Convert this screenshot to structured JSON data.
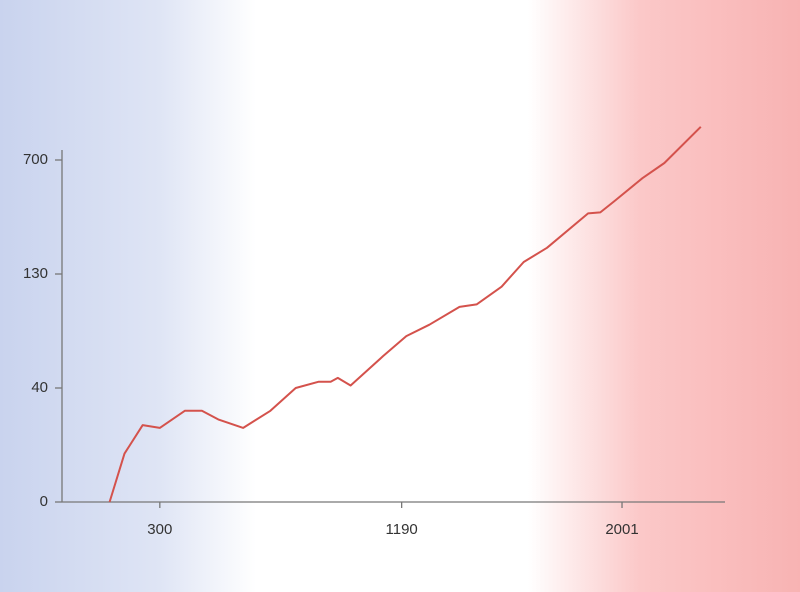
{
  "chart_data": {
    "type": "line",
    "x": [
      115,
      170,
      237,
      300,
      392,
      455,
      515,
      607,
      707,
      800,
      885,
      929,
      955,
      1002,
      1121,
      1207,
      1292,
      1403,
      1466,
      1558,
      1639,
      1725,
      1876,
      1921,
      1972,
      2076,
      2157,
      2291
    ],
    "series": [
      {
        "color": "#d4524c",
        "values": [
          0,
          17,
          27,
          26,
          32,
          32,
          29,
          26,
          32,
          40,
          45,
          45,
          48,
          42,
          65,
          81,
          90,
          104,
          106,
          120,
          190,
          261,
          433,
          438,
          493,
          609,
          685,
          866
        ]
      }
    ],
    "xlim": [
      -60,
      2380
    ],
    "xticks": [
      300,
      1190,
      2001
    ],
    "ylim": [
      0,
      750
    ],
    "yticks": [
      0,
      40,
      130,
      700
    ]
  }
}
